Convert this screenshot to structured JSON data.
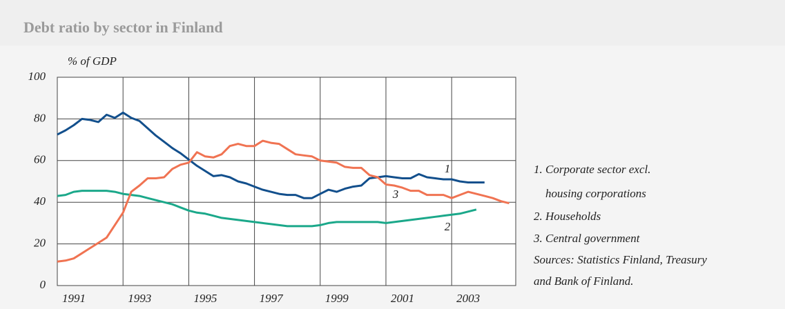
{
  "chart_data": {
    "type": "line",
    "title": "Debt ratio by sector in Finland",
    "y_label": "% of GDP",
    "x": [
      1991,
      1991.25,
      1991.5,
      1991.75,
      1992,
      1992.25,
      1992.5,
      1992.75,
      1993,
      1993.25,
      1993.5,
      1993.75,
      1994,
      1994.25,
      1994.5,
      1994.75,
      1995,
      1995.25,
      1995.5,
      1995.75,
      1996,
      1996.25,
      1996.5,
      1996.75,
      1997,
      1997.25,
      1997.5,
      1997.75,
      1998,
      1998.25,
      1998.5,
      1998.75,
      1999,
      1999.25,
      1999.5,
      1999.75,
      2000,
      2000.25,
      2000.5,
      2000.75,
      2001,
      2001.25,
      2001.5,
      2001.75,
      2002,
      2002.25,
      2002.5,
      2002.75,
      2003,
      2003.25,
      2003.5,
      2003.75,
      2004,
      2004.25,
      2004.5,
      2004.75
    ],
    "series": [
      {
        "name": "1",
        "color": "#124f8c",
        "values": [
          72.5,
          74.5,
          77,
          80,
          79.5,
          78.5,
          82,
          80.5,
          83,
          80.5,
          79,
          75.5,
          72,
          69,
          66,
          63.5,
          60.5,
          57.5,
          55,
          52.5,
          53,
          52,
          50,
          49,
          47.5,
          46,
          45,
          44,
          43.5,
          43.5,
          42,
          42,
          44,
          46,
          45,
          46.5,
          47.5,
          48,
          51.5,
          52,
          52.5,
          52,
          51.5,
          51.5,
          53.5,
          52,
          51.5,
          51,
          51,
          50,
          49.5,
          49.5,
          49.5,
          null,
          null,
          null
        ]
      },
      {
        "name": "2",
        "color": "#1ba88a",
        "values": [
          43,
          43.5,
          45,
          45.5,
          45.5,
          45.5,
          45.5,
          45,
          44,
          43.5,
          43,
          42,
          41,
          40,
          39,
          37.5,
          36,
          35,
          34.5,
          33.5,
          32.5,
          32,
          31.5,
          31,
          30.5,
          30,
          29.5,
          29,
          28.5,
          28.5,
          28.5,
          28.5,
          29,
          30,
          30.5,
          30.5,
          30.5,
          30.5,
          30.5,
          30.5,
          30,
          30.5,
          31,
          31.5,
          32,
          32.5,
          33,
          33.5,
          34,
          34.5,
          35.5,
          36.5,
          null,
          null,
          null,
          null
        ]
      },
      {
        "name": "3",
        "color": "#f07352",
        "values": [
          11.5,
          12,
          13,
          15.5,
          18,
          20.5,
          23,
          29,
          35,
          45,
          48,
          51.5,
          51.5,
          52,
          56,
          58,
          59,
          64,
          62,
          61.5,
          63,
          67,
          68,
          67,
          67,
          69.5,
          68.5,
          68,
          65.5,
          63,
          62.5,
          62,
          60,
          59.5,
          59,
          57,
          56.5,
          56.5,
          53,
          52,
          48.5,
          48,
          47,
          45.5,
          45.5,
          43.5,
          43.5,
          43.5,
          42,
          43.5,
          45,
          44,
          43,
          42,
          40.5,
          39.5
        ]
      }
    ],
    "notes": [
      "1. Corporate sector excl.",
      "housing corporations",
      "2. Households",
      "3. Central government",
      "Sources: Statistics Finland, Treasury",
      "and Bank of Finland."
    ],
    "xlim": [
      1991,
      2004.95
    ],
    "xticks": [
      1991,
      1993,
      1995,
      1997,
      1999,
      2001,
      2003
    ],
    "ylim": [
      0,
      100
    ],
    "yticks": [
      0,
      20,
      40,
      60,
      80,
      100
    ],
    "grid": true
  }
}
